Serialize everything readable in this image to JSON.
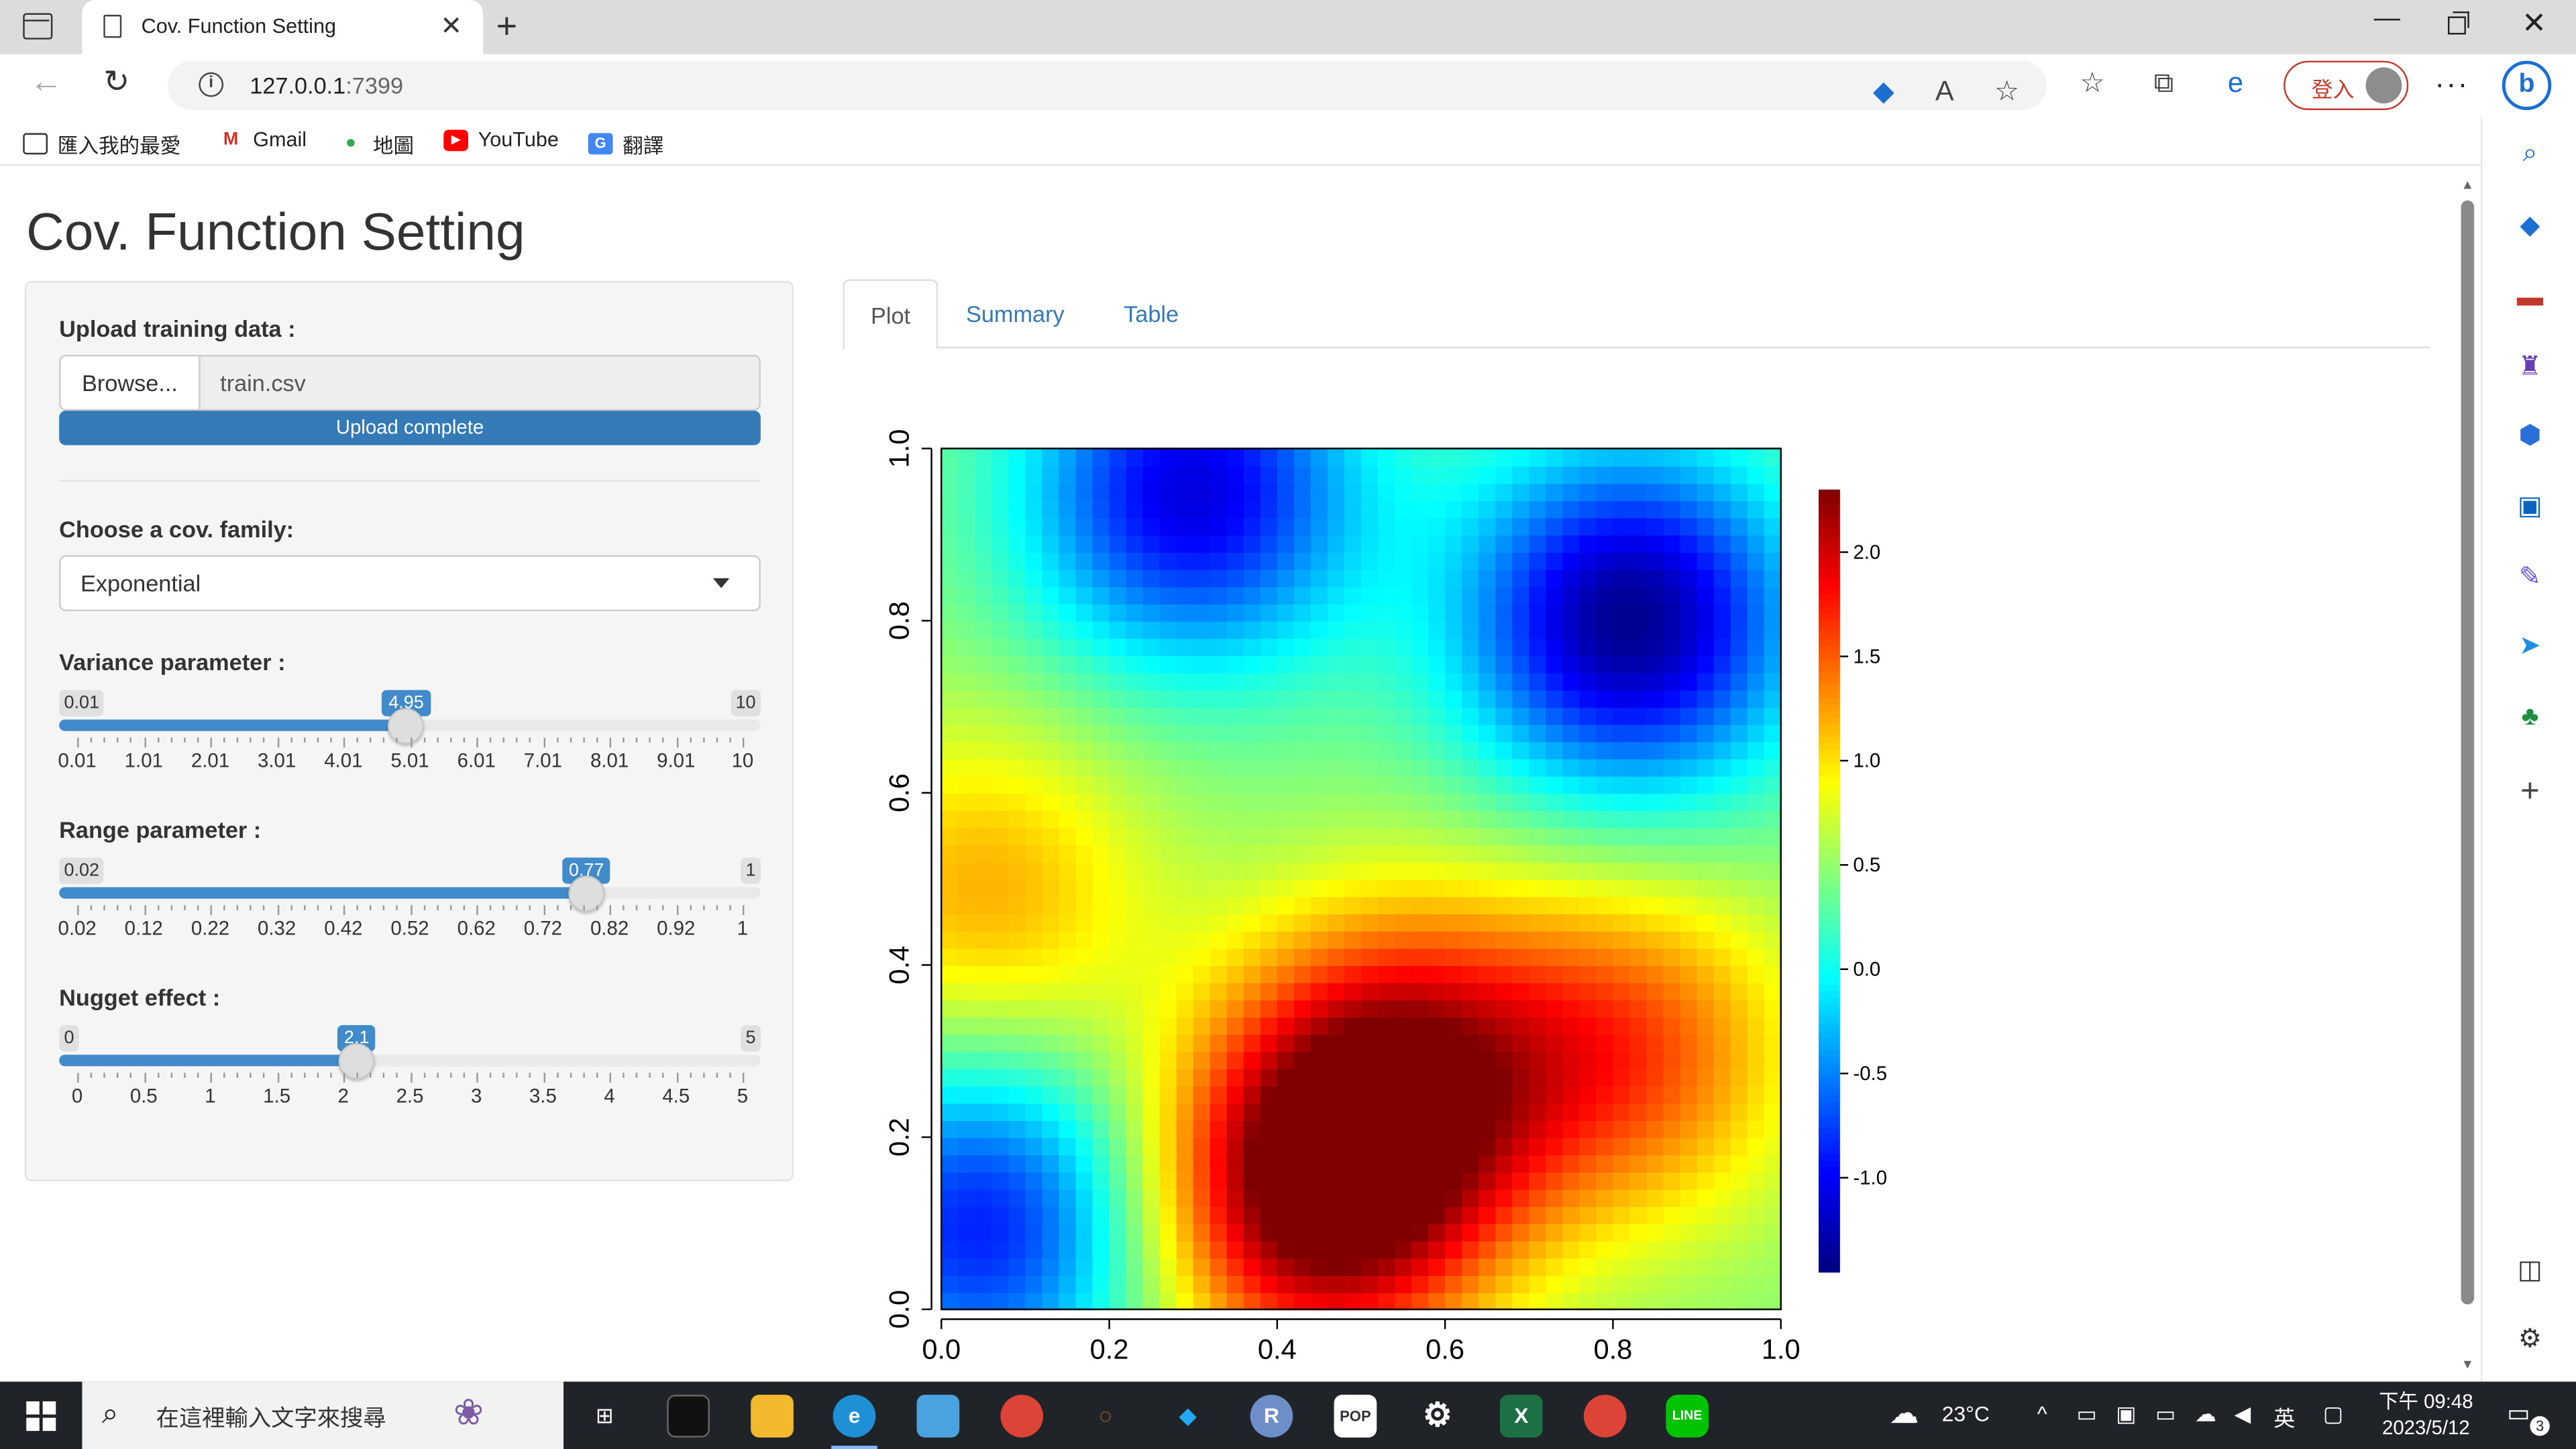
{
  "browser": {
    "tab_title": "Cov. Function Setting",
    "url_host": "127.0.0.1",
    "url_port": ":7399",
    "login_label": "登入",
    "bookmarks": [
      {
        "label": "匯入我的最愛",
        "icon": "import-favorites-icon"
      },
      {
        "label": "Gmail",
        "icon": "gmail-icon"
      },
      {
        "label": "地圖",
        "icon": "maps-icon"
      },
      {
        "label": "YouTube",
        "icon": "youtube-icon"
      },
      {
        "label": "翻譯",
        "icon": "translate-icon"
      }
    ]
  },
  "app": {
    "title": "Cov. Function Setting",
    "upload": {
      "label": "Upload training data :",
      "browse_label": "Browse...",
      "file_name": "train.csv",
      "progress_label": "Upload complete",
      "progress": 1.0
    },
    "family": {
      "label": "Choose a cov. family:",
      "selected": "Exponential"
    },
    "sliders": [
      {
        "label": "Variance parameter :",
        "min": "0.01",
        "max": "10",
        "value": "4.95",
        "min_num": 0.01,
        "max_num": 10,
        "value_num": 4.95,
        "ticks": [
          "0.01",
          "1.01",
          "2.01",
          "3.01",
          "4.01",
          "5.01",
          "6.01",
          "7.01",
          "8.01",
          "9.01",
          "10"
        ]
      },
      {
        "label": "Range parameter :",
        "min": "0.02",
        "max": "1",
        "value": "0.77",
        "min_num": 0.02,
        "max_num": 1,
        "value_num": 0.77,
        "ticks": [
          "0.02",
          "0.12",
          "0.22",
          "0.32",
          "0.42",
          "0.52",
          "0.62",
          "0.72",
          "0.82",
          "0.92",
          "1"
        ]
      },
      {
        "label": "Nugget effect :",
        "min": "0",
        "max": "5",
        "value": "2.1",
        "min_num": 0,
        "max_num": 5,
        "value_num": 2.1,
        "ticks": [
          "0",
          "0.5",
          "1",
          "1.5",
          "2",
          "2.5",
          "3",
          "3.5",
          "4",
          "4.5",
          "5"
        ]
      }
    ],
    "tabs": [
      "Plot",
      "Summary",
      "Table"
    ],
    "active_tab": "Plot"
  },
  "chart_data": {
    "type": "heatmap",
    "title": "",
    "xlabel": "",
    "ylabel": "",
    "xlim": [
      0,
      1
    ],
    "ylim": [
      0,
      1
    ],
    "x_ticks": [
      "0.0",
      "0.2",
      "0.4",
      "0.6",
      "0.8",
      "1.0"
    ],
    "y_ticks": [
      "0.0",
      "0.2",
      "0.4",
      "0.6",
      "0.8",
      "1.0"
    ],
    "colorbar": {
      "range": [
        -1.45,
        2.3
      ],
      "ticks": [
        "2.0",
        "1.5",
        "1.0",
        "0.5",
        "0.0",
        "-0.5",
        "-1.0"
      ],
      "tick_values": [
        2.0,
        1.5,
        1.0,
        0.5,
        0.0,
        -0.5,
        -1.0
      ],
      "palette": "jet (dark blue → blue → cyan → green → yellow → orange → red → dark red)"
    },
    "grid_size": [
      50,
      50
    ],
    "field_features": [
      {
        "x": 0.45,
        "y": 0.13,
        "value": 2.3
      },
      {
        "x": 0.55,
        "y": 0.28,
        "value": 1.8
      },
      {
        "x": 0.82,
        "y": 0.3,
        "value": 1.5
      },
      {
        "x": 0.05,
        "y": 0.48,
        "value": 1.2
      },
      {
        "x": 0.82,
        "y": 0.8,
        "value": -1.4
      },
      {
        "x": 0.3,
        "y": 0.95,
        "value": -1.1
      },
      {
        "x": 0.05,
        "y": 0.1,
        "value": -0.9
      }
    ]
  },
  "taskbar": {
    "search_placeholder": "在這裡輸入文字來搜尋",
    "weather": "23°C",
    "ime": "英",
    "time": "下午 09:48",
    "date": "2023/5/12",
    "notifications": "3"
  },
  "colors": {
    "accent": "#337ab7",
    "slider": "#428bca",
    "taskbar": "#202327"
  }
}
